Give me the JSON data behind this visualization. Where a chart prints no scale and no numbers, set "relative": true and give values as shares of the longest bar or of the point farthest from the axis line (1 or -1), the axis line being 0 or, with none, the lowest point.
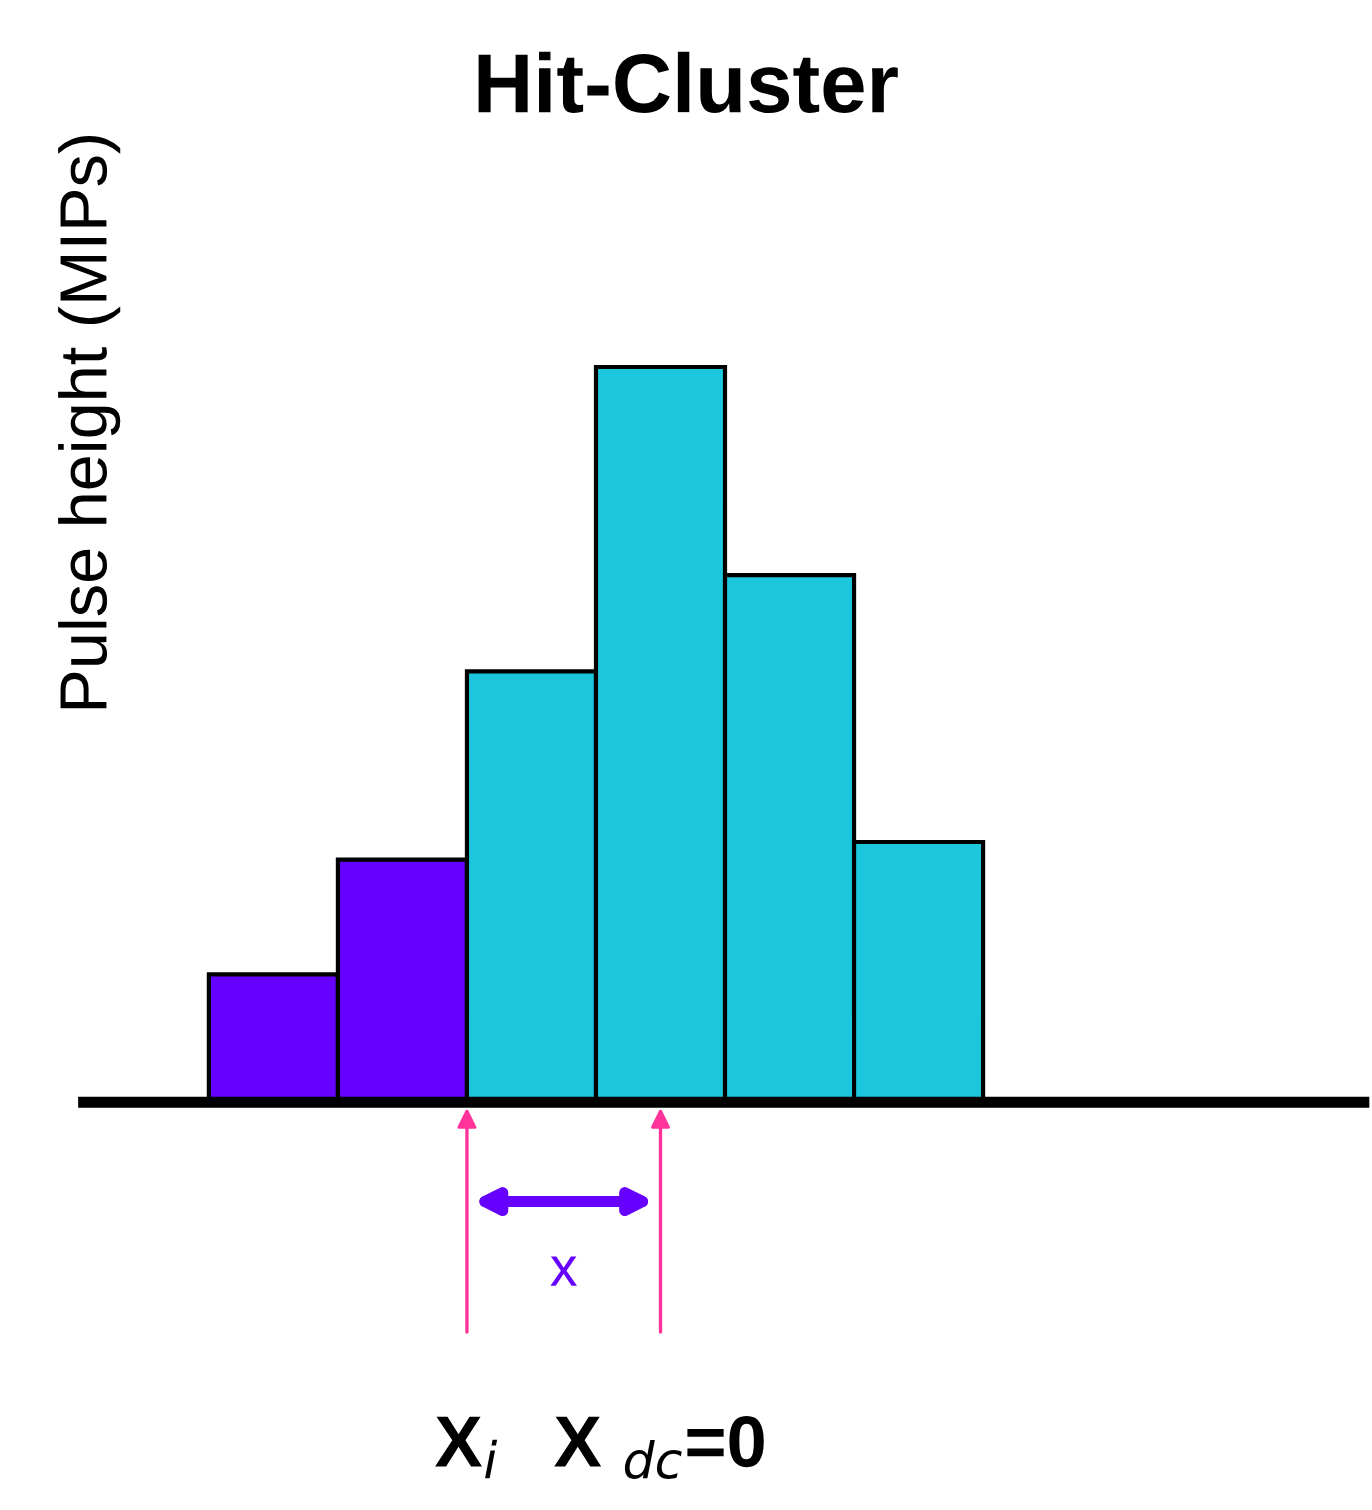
{
  "chart_data": {
    "type": "bar",
    "title": "Hit-Cluster",
    "ylabel": "Pulse height (MIPs)",
    "relative": true,
    "categories": [
      null,
      null,
      null,
      null,
      null,
      null
    ],
    "values": [
      0.174,
      0.33,
      0.586,
      1,
      0.717,
      0.354
    ],
    "colors": [
      "#6600ff",
      "#6600ff",
      "#1cc6dc",
      "#1cc6dc",
      "#1cc6dc",
      "#1cc6dc"
    ],
    "annotations": [
      "x",
      "X$_{i}$",
      "X $_{dc}$=0"
    ]
  }
}
